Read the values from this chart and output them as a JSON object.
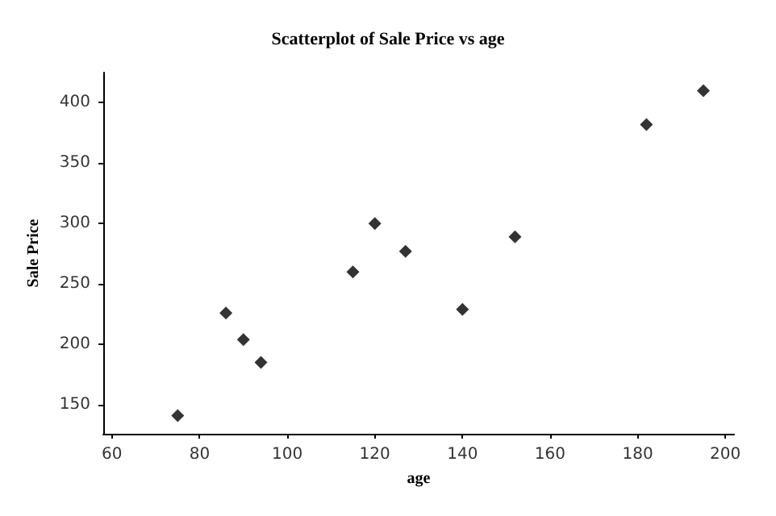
{
  "chart_data": {
    "type": "scatter",
    "title": "Scatterplot of Sale Price vs age",
    "xlabel": "age",
    "ylabel": "Sale Price",
    "x": [
      75,
      86,
      90,
      94,
      115,
      120,
      127,
      140,
      152,
      182,
      195
    ],
    "values": [
      141,
      226,
      204,
      185,
      260,
      300,
      277,
      229,
      289,
      382,
      410
    ],
    "color": "#000000",
    "marker": "diamond",
    "xlim": [
      58,
      202
    ],
    "xticks": [
      60,
      80,
      100,
      120,
      140,
      160,
      180,
      200
    ],
    "ylim": [
      126,
      425
    ],
    "yticks": [
      150,
      200,
      250,
      300,
      350,
      400
    ],
    "grid": false
  }
}
